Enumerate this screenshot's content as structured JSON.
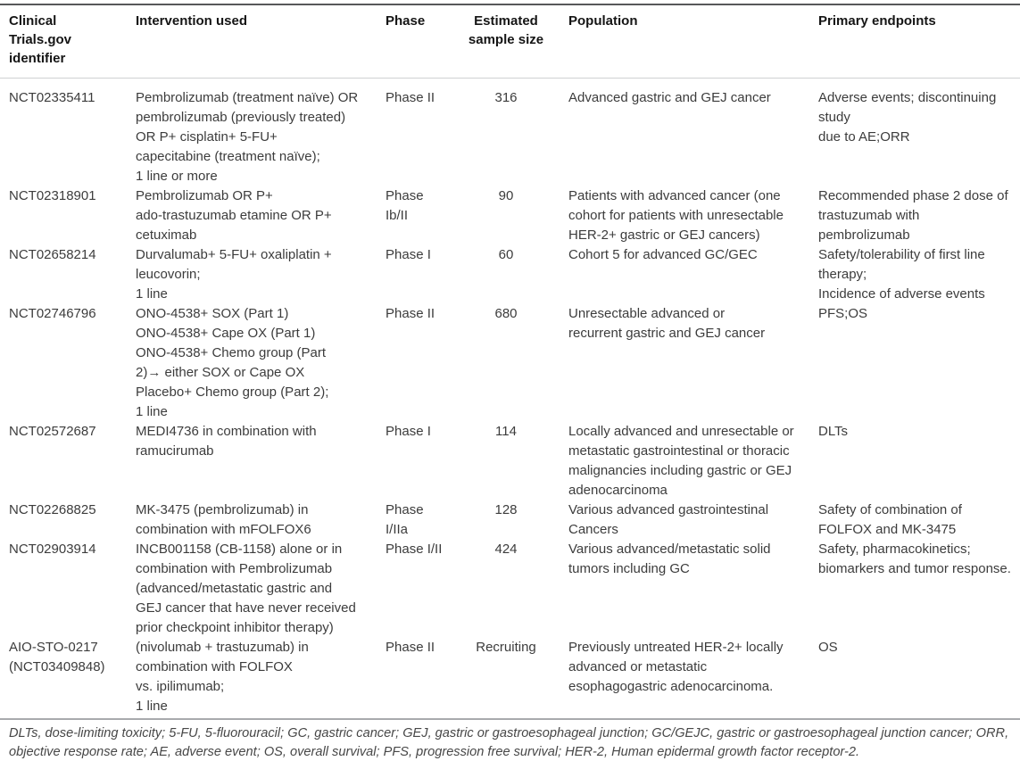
{
  "table": {
    "headers": [
      "Clinical\nTrials.gov\nidentifier",
      "Intervention used",
      "Phase",
      "Estimated\nsample size",
      "Population",
      "Primary endpoints"
    ],
    "rows": [
      {
        "id": "NCT02335411",
        "intervention": "Pembrolizumab (treatment naïve) OR\npembrolizumab (previously treated)\nOR P+ cisplatin+ 5-FU+\ncapecitabine (treatment naïve);\n1 line or more",
        "phase": "Phase II",
        "sample_size": "316",
        "population": "Advanced gastric and GEJ cancer",
        "endpoints": "Adverse events; discontinuing\nstudy\ndue to AE;ORR"
      },
      {
        "id": "NCT02318901",
        "intervention": "Pembrolizumab OR P+\nado-trastuzumab etamine OR P+\ncetuximab",
        "phase": "Phase\nIb/II",
        "sample_size": "90",
        "population": "Patients with advanced cancer (one\ncohort for patients with unresectable\nHER-2+ gastric or GEJ cancers)",
        "endpoints": "Recommended phase 2 dose of\ntrastuzumab with\npembrolizumab"
      },
      {
        "id": "NCT02658214",
        "intervention": "Durvalumab+ 5-FU+ oxaliplatin +\nleucovorin;\n1 line",
        "phase": "Phase I",
        "sample_size": "60",
        "population": "Cohort 5 for advanced GC/GEC",
        "endpoints": "Safety/tolerability of first line\ntherapy;\nIncidence of adverse events"
      },
      {
        "id": "NCT02746796",
        "intervention": "ONO-4538+ SOX (Part 1)\nONO-4538+ Cape OX (Part 1)\nONO-4538+ Chemo group (Part\n2)→ either SOX or Cape OX\nPlacebo+ Chemo group (Part 2);\n1 line",
        "phase": "Phase II",
        "sample_size": "680",
        "population": "Unresectable advanced or\nrecurrent gastric and GEJ cancer",
        "endpoints": "PFS;OS"
      },
      {
        "id": "NCT02572687",
        "intervention": "MEDI4736 in combination with\nramucirumab",
        "phase": "Phase I",
        "sample_size": "114",
        "population": "Locally advanced and unresectable or\nmetastatic gastrointestinal or thoracic\nmalignancies including gastric or GEJ\nadenocarcinoma",
        "endpoints": "DLTs"
      },
      {
        "id": "NCT02268825",
        "intervention": "MK-3475 (pembrolizumab) in\ncombination with mFOLFOX6",
        "phase": "Phase\nI/IIa",
        "sample_size": "128",
        "population": "Various advanced gastrointestinal\nCancers",
        "endpoints": "Safety of combination of\nFOLFOX and MK-3475"
      },
      {
        "id": "NCT02903914",
        "intervention": "INCB001158 (CB-1158) alone or in\ncombination with Pembrolizumab\n(advanced/metastatic gastric and\nGEJ cancer that have never received\nprior checkpoint inhibitor therapy)",
        "phase": "Phase I/II",
        "sample_size": "424",
        "population": "Various advanced/metastatic solid\ntumors including GC",
        "endpoints": "Safety, pharmacokinetics;\nbiomarkers and tumor response."
      },
      {
        "id": "AIO-STO-0217\n(NCT03409848)",
        "intervention": "(nivolumab + trastuzumab) in\ncombination with FOLFOX\nvs. ipilimumab;\n1 line",
        "phase": "Phase II",
        "sample_size": "Recruiting",
        "population": "Previously untreated HER-2+ locally\nadvanced or metastatic\nesophagogastric adenocarcinoma.",
        "endpoints": "OS"
      }
    ]
  },
  "footnote": "DLTs, dose-limiting toxicity; 5-FU, 5-fluorouracil; GC, gastric cancer; GEJ, gastric or gastroesophageal junction; GC/GEJC, gastric or gastroesophageal junction cancer; ORR, objective response rate; AE, adverse event; OS, overall survival; PFS, progression free survival; HER-2, Human epidermal growth factor receptor-2."
}
